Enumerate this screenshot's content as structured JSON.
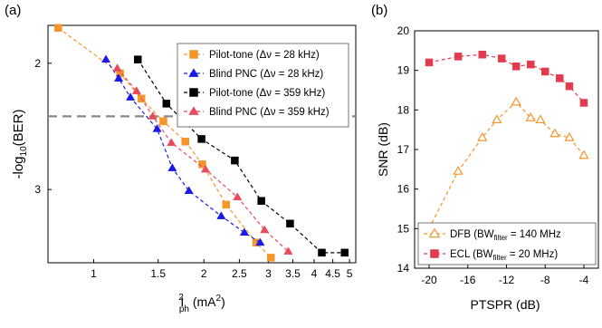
{
  "chart_data": [
    {
      "panel_label": "(a)",
      "type": "line",
      "xscale": "log",
      "yscale": "-log10(BER)",
      "xlabel": {
        "main": "I",
        "sup": "2",
        "sub": "ph",
        "unit": " (mA",
        "unit_sup": "2",
        "unit_close": ")"
      },
      "ylabel": {
        "main": "-log",
        "sub": "10",
        "rest": "(BER)"
      },
      "xlim": [
        0.75,
        5.2
      ],
      "ylim": [
        1.7,
        3.58
      ],
      "xticks": [
        {
          "value": 1,
          "label": "1"
        },
        {
          "value": 1.5,
          "label": "1.5"
        },
        {
          "value": 2,
          "label": "2"
        },
        {
          "value": 2.5,
          "label": "2.5"
        },
        {
          "value": 3,
          "label": "3"
        },
        {
          "value": 3.5,
          "label": "3.5"
        },
        {
          "value": 4,
          "label": "4"
        },
        {
          "value": 4.5,
          "label": "4.5"
        },
        {
          "value": 5,
          "label": "5"
        }
      ],
      "yticks": [
        {
          "value": 2,
          "label": "2"
        },
        {
          "value": 3,
          "label": "3"
        }
      ],
      "threshold": 2.42,
      "legend": "top-right",
      "series": [
        {
          "name": "Pilot-tone (Δν = 28 kHz)",
          "marker": "square",
          "color": "#f5962a",
          "fill": true,
          "points": [
            [
              0.8,
              1.72
            ],
            [
              1.18,
              2.08
            ],
            [
              1.35,
              2.28
            ],
            [
              1.55,
              2.46
            ],
            [
              1.78,
              2.62
            ],
            [
              1.98,
              2.8
            ],
            [
              2.3,
              3.12
            ],
            [
              2.78,
              3.42
            ],
            [
              3.05,
              3.54
            ]
          ]
        },
        {
          "name": "Blind PNC (Δν = 28 kHz)",
          "marker": "triangle",
          "color": "#1a1ae6",
          "fill": true,
          "points": [
            [
              1.08,
              1.97
            ],
            [
              1.17,
              2.12
            ],
            [
              1.26,
              2.27
            ],
            [
              1.49,
              2.52
            ],
            [
              1.64,
              2.83
            ],
            [
              1.82,
              3.01
            ],
            [
              2.23,
              3.21
            ],
            [
              2.58,
              3.34
            ],
            [
              2.85,
              3.42
            ]
          ]
        },
        {
          "name": "Pilot-tone (Δν = 359 kHz)",
          "marker": "square",
          "color": "#000000",
          "fill": true,
          "points": [
            [
              1.32,
              1.97
            ],
            [
              1.58,
              2.32
            ],
            [
              1.97,
              2.6
            ],
            [
              2.43,
              2.77
            ],
            [
              2.87,
              3.09
            ],
            [
              3.44,
              3.27
            ],
            [
              4.2,
              3.5
            ],
            [
              4.85,
              3.5
            ]
          ]
        },
        {
          "name": "Blind PNC (Δν = 359 kHz)",
          "marker": "triangle",
          "color": "#e84c5a",
          "fill": true,
          "points": [
            [
              1.16,
              2.04
            ],
            [
              1.31,
              2.22
            ],
            [
              1.45,
              2.42
            ],
            [
              1.63,
              2.63
            ],
            [
              2.02,
              2.84
            ],
            [
              2.47,
              3.06
            ],
            [
              2.93,
              3.32
            ],
            [
              3.4,
              3.49
            ]
          ]
        }
      ]
    },
    {
      "panel_label": "(b)",
      "type": "line",
      "xlabel": "PTSPR (dB)",
      "ylabel": "SNR (dB)",
      "xlim": [
        -21.5,
        -2.5
      ],
      "ylim": [
        14,
        20
      ],
      "xticks": [
        -20,
        -16,
        -12,
        -8,
        -4
      ],
      "yticks": [
        14,
        15,
        16,
        17,
        18,
        19,
        20
      ],
      "legend": "bottom",
      "series": [
        {
          "name": {
            "pre": "DFB (BW",
            "sub": "filter",
            "post": " = 140 MHz"
          },
          "marker": "triangle",
          "color": "#f5962a",
          "fill": false,
          "points": [
            [
              -20,
              15.0
            ],
            [
              -17,
              16.45
            ],
            [
              -14.5,
              17.3
            ],
            [
              -13,
              17.75
            ],
            [
              -11,
              18.2
            ],
            [
              -9.5,
              17.8
            ],
            [
              -8.5,
              17.75
            ],
            [
              -7,
              17.4
            ],
            [
              -5.5,
              17.3
            ],
            [
              -4,
              16.85
            ]
          ]
        },
        {
          "name": {
            "pre": "ECL (BW",
            "sub": "filter",
            "post": " = 20 MHz)"
          },
          "marker": "square",
          "color": "#e23a4e",
          "fill": true,
          "points": [
            [
              -20,
              19.2
            ],
            [
              -17,
              19.35
            ],
            [
              -14.5,
              19.4
            ],
            [
              -12.5,
              19.3
            ],
            [
              -11,
              19.1
            ],
            [
              -9.5,
              19.15
            ],
            [
              -8,
              18.97
            ],
            [
              -6.5,
              18.8
            ],
            [
              -5.5,
              18.6
            ],
            [
              -4,
              18.18
            ]
          ]
        }
      ]
    }
  ]
}
